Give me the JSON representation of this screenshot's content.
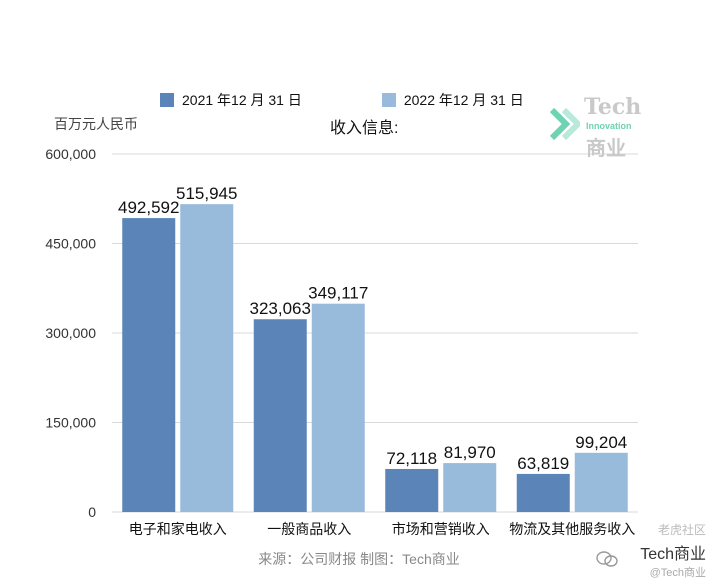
{
  "chart_data": {
    "type": "bar",
    "title": "收入信息:",
    "ylabel": "百万元人民币",
    "categories": [
      "电子和家电收入",
      "一般商品收入",
      "市场和营销收入",
      "物流及其他服务收入"
    ],
    "series": [
      {
        "name": "2021 年12 月 31 日",
        "color": "#5b84b8",
        "values": [
          492592,
          323063,
          72118,
          63819
        ],
        "labels": [
          "492,592",
          "323,063",
          "72,118",
          "63,819"
        ]
      },
      {
        "name": "2022 年12 月 31 日",
        "color": "#98badb",
        "values": [
          515945,
          349117,
          81970,
          99204
        ],
        "labels": [
          "515,945",
          "349,117",
          "81,970",
          "99,204"
        ]
      }
    ],
    "ylim": [
      0,
      600000
    ],
    "yticks": [
      0,
      150000,
      300000,
      450000,
      600000
    ],
    "ytick_labels": [
      "0",
      "150,000",
      "300,000",
      "450,000",
      "600,000"
    ],
    "grid": true,
    "legend_position": "top"
  },
  "source_text": "来源：公司财报 制图：Tech商业",
  "watermark": {
    "title": "Tech",
    "subtitle": "Innovation",
    "cn": "商业",
    "accent": "#6ed3b3"
  },
  "corner": {
    "logo": "老虎社区",
    "main": "Tech商业",
    "sub": "@Tech商业"
  }
}
